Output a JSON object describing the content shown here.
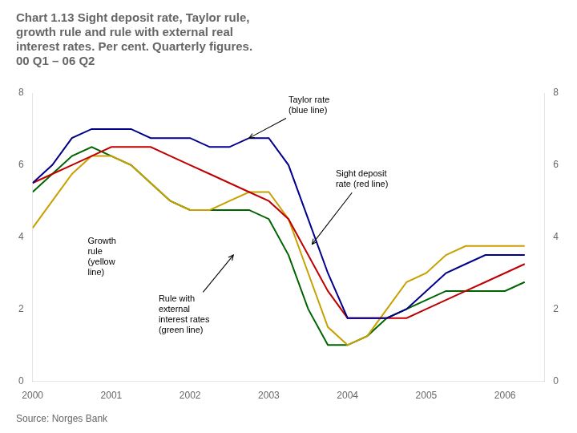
{
  "chart_data": {
    "type": "line",
    "title": "Chart 1.13 Sight deposit rate, Taylor rule,\ngrowth rule and rule with external real\ninterest rates. Per cent. Quarterly figures.\n00 Q1 – 06 Q2",
    "source": "Source: Norges Bank",
    "x": [
      2000.0,
      2000.25,
      2000.5,
      2000.75,
      2001.0,
      2001.25,
      2001.5,
      2001.75,
      2002.0,
      2002.25,
      2002.5,
      2002.75,
      2003.0,
      2003.25,
      2003.5,
      2003.75,
      2004.0,
      2004.25,
      2004.5,
      2004.75,
      2005.0,
      2005.25,
      2005.5,
      2005.75,
      2006.0,
      2006.25
    ],
    "xlim": [
      2000.0,
      2006.5
    ],
    "xticks": [
      2000,
      2001,
      2002,
      2003,
      2004,
      2005,
      2006
    ],
    "ylim": [
      0,
      8
    ],
    "yticks": [
      0,
      2,
      4,
      6,
      8
    ],
    "y2lim": [
      0,
      8
    ],
    "y2ticks": [
      0,
      2,
      4,
      6,
      8
    ],
    "series": [
      {
        "color": "#00008b",
        "values": [
          5.5,
          6.0,
          6.75,
          7.0,
          7.0,
          7.0,
          6.75,
          6.75,
          6.75,
          6.5,
          6.5,
          6.75,
          6.75,
          6.0,
          4.5,
          3.0,
          1.75,
          1.75,
          1.75,
          2.0,
          2.5,
          3.0,
          3.25,
          3.5,
          3.5,
          3.5
        ]
      },
      {
        "color": "#c00000",
        "values": [
          5.5,
          5.75,
          6.0,
          6.25,
          6.5,
          6.5,
          6.5,
          6.25,
          6.0,
          5.75,
          5.5,
          5.25,
          5.0,
          4.5,
          3.5,
          2.5,
          1.75,
          1.75,
          1.75,
          1.75,
          2.0,
          2.25,
          2.5,
          2.75,
          3.0,
          3.25
        ]
      },
      {
        "color": "#c8a000",
        "values": [
          4.25,
          5.0,
          5.75,
          6.25,
          6.25,
          6.0,
          5.5,
          5.0,
          4.75,
          4.75,
          5.0,
          5.25,
          5.25,
          4.5,
          3.0,
          1.5,
          1.0,
          1.25,
          2.0,
          2.75,
          3.0,
          3.5,
          3.75,
          3.75,
          3.75,
          3.75
        ]
      },
      {
        "color": "#006400",
        "values": [
          5.25,
          5.75,
          6.25,
          6.5,
          6.25,
          6.0,
          5.5,
          5.0,
          4.75,
          4.75,
          4.75,
          4.75,
          4.5,
          3.5,
          2.0,
          1.0,
          1.0,
          1.25,
          1.75,
          2.0,
          2.25,
          2.5,
          2.5,
          2.5,
          2.5,
          2.75
        ]
      }
    ],
    "annotations": [
      {
        "text": "Taylor rate\n(blue line)",
        "x": 2003.25,
        "y": 7.35,
        "arrow_to": [
          2002.75,
          6.75
        ]
      },
      {
        "text": "Sight deposit\nrate (red line)",
        "x": 2003.85,
        "y": 5.3,
        "arrow_to": [
          2003.55,
          3.8
        ]
      },
      {
        "text": "Growth\nrule\n(yellow\nline)",
        "x": 2000.7,
        "y": 4.0
      },
      {
        "text": "Rule with\nexternal\ninterest rates\n(green line)",
        "x": 2001.6,
        "y": 2.4,
        "arrow_to": [
          2002.55,
          3.5
        ]
      }
    ],
    "grid": false,
    "legend": "none"
  }
}
